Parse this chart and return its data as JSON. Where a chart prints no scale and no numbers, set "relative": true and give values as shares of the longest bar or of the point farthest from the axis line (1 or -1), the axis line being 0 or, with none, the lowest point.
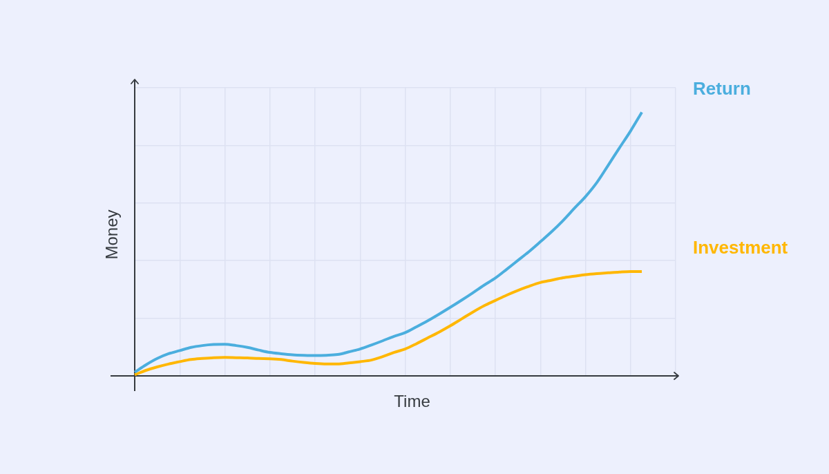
{
  "chart_data": {
    "type": "line",
    "xlabel": "Time",
    "ylabel": "Money",
    "relative": true,
    "grid": true,
    "categories": [
      null,
      null,
      null,
      null,
      null,
      null,
      null,
      null,
      null,
      null,
      null,
      null,
      null,
      null,
      null,
      null,
      null,
      null,
      null,
      null,
      null,
      null,
      null,
      null,
      null,
      null,
      null,
      null,
      null,
      null,
      null,
      null,
      null,
      null,
      null,
      null,
      null,
      null,
      null,
      null,
      null,
      null,
      null,
      null,
      null,
      null,
      null,
      null,
      null
    ],
    "series": [
      {
        "name": "Return",
        "color": "#4baede",
        "values": [
          0.014,
          0.042,
          0.066,
          0.084,
          0.096,
          0.108,
          0.115,
          0.119,
          0.12,
          0.115,
          0.108,
          0.098,
          0.089,
          0.084,
          0.08,
          0.078,
          0.077,
          0.078,
          0.081,
          0.091,
          0.102,
          0.117,
          0.133,
          0.15,
          0.164,
          0.186,
          0.209,
          0.234,
          0.26,
          0.287,
          0.315,
          0.344,
          0.371,
          0.404,
          0.438,
          0.472,
          0.509,
          0.547,
          0.589,
          0.635,
          0.68,
          0.733,
          0.798,
          0.864,
          0.929,
          1.0,
          null,
          null,
          null
        ]
      },
      {
        "name": "Investment",
        "color": "#ffb703",
        "values": [
          0.004,
          0.021,
          0.034,
          0.045,
          0.054,
          0.062,
          0.066,
          0.069,
          0.07,
          0.069,
          0.068,
          0.066,
          0.065,
          0.062,
          0.056,
          0.051,
          0.047,
          0.045,
          0.045,
          0.049,
          0.054,
          0.06,
          0.073,
          0.089,
          0.102,
          0.122,
          0.144,
          0.166,
          0.19,
          0.216,
          0.242,
          0.266,
          0.286,
          0.306,
          0.324,
          0.34,
          0.354,
          0.363,
          0.372,
          0.378,
          0.384,
          0.388,
          0.391,
          0.394,
          0.396,
          0.396,
          null,
          null,
          null
        ]
      }
    ]
  }
}
